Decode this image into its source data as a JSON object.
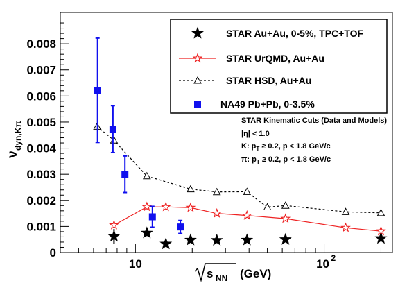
{
  "chart_data": {
    "type": "scatter",
    "xlabel": "√s_NN (GeV)",
    "ylabel": "ν_dyn,Kπ",
    "xscale": "log",
    "xlim": [
      4.0,
      230
    ],
    "ylim": [
      0,
      0.0092
    ],
    "x_tick_labels": [
      "10",
      "10^2"
    ],
    "y_ticks": [
      0,
      0.001,
      0.002,
      0.003,
      0.004,
      0.005,
      0.006,
      0.007,
      0.008
    ],
    "y_tick_labels": [
      "0",
      "0.001",
      "0.002",
      "0.003",
      "0.004",
      "0.005",
      "0.006",
      "0.007",
      "0.008"
    ],
    "legend_position": "top-right",
    "series": [
      {
        "name": "STAR Au+Au, 0-5%, TPC+TOF",
        "color": "#000000",
        "marker": "star-filled",
        "x": [
          7.7,
          11.5,
          14.5,
          19.6,
          27,
          39,
          62.4,
          200
        ],
        "y": [
          0.00062,
          0.00075,
          0.00033,
          0.00048,
          0.00047,
          0.00048,
          0.0005,
          0.00054
        ],
        "yerr": [
          0.00028,
          0.00012,
          8e-05,
          0.0001,
          0.0001,
          0.0001,
          0.0001,
          8e-05
        ]
      },
      {
        "name": "STAR UrQMD, Au+Au",
        "color": "#ee2222",
        "marker": "star-open",
        "line": "solid",
        "x": [
          7.7,
          11.5,
          14.5,
          19.6,
          27,
          39,
          62.4,
          130,
          200
        ],
        "y": [
          0.00105,
          0.00175,
          0.00175,
          0.00172,
          0.0015,
          0.00142,
          0.0013,
          0.00095,
          0.00082
        ]
      },
      {
        "name": "STAR HSD, Au+Au",
        "color": "#000000",
        "marker": "triangle-open",
        "line": "dashed",
        "x": [
          6.27,
          7.7,
          11.5,
          19.6,
          27,
          39,
          50,
          62.4,
          130,
          200
        ],
        "y": [
          0.00483,
          0.0043,
          0.00293,
          0.00243,
          0.00232,
          0.00233,
          0.00174,
          0.0018,
          0.00156,
          0.00152
        ]
      },
      {
        "name": "NA49 Pb+Pb, 0-3.5%",
        "color": "#1010ee",
        "marker": "square-filled",
        "x": [
          6.3,
          7.6,
          8.8,
          12.3,
          17.3
        ],
        "y": [
          0.00622,
          0.00473,
          0.003,
          0.00137,
          0.00098
        ],
        "yerr": [
          0.002,
          0.0009,
          0.0007,
          0.0004,
          0.00025
        ]
      }
    ],
    "annotations": [
      "STAR Kinematic Cuts (Data and Models)",
      "|η| < 1.0",
      "K: p_T ≥ 0.2, p < 1.8 GeV/c",
      "π: p_T ≥ 0.2, p < 1.8 GeV/c"
    ]
  }
}
